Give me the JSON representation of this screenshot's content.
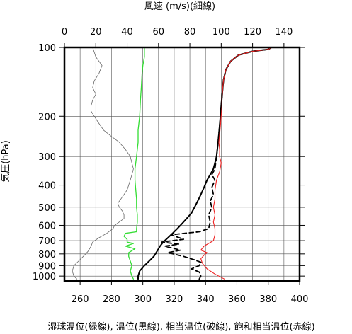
{
  "chart_data": {
    "type": "line",
    "x_top": {
      "label": "風速 (m/s)(細線)",
      "range": [
        0,
        150
      ],
      "ticks": [
        0,
        20,
        40,
        60,
        80,
        100,
        120,
        140
      ]
    },
    "x_bottom": {
      "range": [
        250,
        400
      ],
      "ticks": [
        260,
        280,
        300,
        320,
        340,
        360,
        380,
        400
      ]
    },
    "y": {
      "label": "気圧(hPa)",
      "scale": "log",
      "reversed": true,
      "range": [
        1050,
        100
      ],
      "ticks": [
        100,
        200,
        300,
        400,
        500,
        600,
        700,
        800,
        900,
        1000
      ]
    },
    "grid": true,
    "caption": "湿球温位(緑線), 温位(黒線), 相当温位(破線), 飽和相当温位(赤線)",
    "series": [
      {
        "key": "wind",
        "axis": "top",
        "color": "#666666",
        "dashed": false,
        "points": [
          [
            8,
            1030
          ],
          [
            6,
            1000
          ],
          [
            5,
            950
          ],
          [
            6,
            900
          ],
          [
            9,
            860
          ],
          [
            12,
            820
          ],
          [
            15,
            780
          ],
          [
            17,
            740
          ],
          [
            18,
            710
          ],
          [
            22,
            680
          ],
          [
            27,
            650
          ],
          [
            31,
            620
          ],
          [
            32,
            600
          ],
          [
            35,
            580
          ],
          [
            38,
            560
          ],
          [
            38,
            540
          ],
          [
            37,
            520
          ],
          [
            35,
            500
          ],
          [
            34,
            480
          ],
          [
            36,
            460
          ],
          [
            38,
            440
          ],
          [
            40,
            420
          ],
          [
            41,
            400
          ],
          [
            42,
            380
          ],
          [
            43,
            360
          ],
          [
            44,
            340
          ],
          [
            43,
            320
          ],
          [
            42,
            300
          ],
          [
            39,
            280
          ],
          [
            35,
            260
          ],
          [
            30,
            245
          ],
          [
            25,
            230
          ],
          [
            22,
            215
          ],
          [
            19,
            200
          ],
          [
            17,
            190
          ],
          [
            17,
            180
          ],
          [
            18,
            170
          ],
          [
            20,
            160
          ],
          [
            18,
            150
          ],
          [
            19,
            140
          ],
          [
            22,
            130
          ],
          [
            24,
            120
          ],
          [
            20,
            110
          ],
          [
            18,
            100
          ]
        ]
      },
      {
        "key": "wet_bulb_potential_temperature",
        "axis": "bottom",
        "color": "#33dd33",
        "dashed": false,
        "points": [
          [
            294,
            1030
          ],
          [
            293,
            1000
          ],
          [
            292,
            950
          ],
          [
            293,
            900
          ],
          [
            292,
            860
          ],
          [
            291,
            820
          ],
          [
            291,
            790
          ],
          [
            295,
            760
          ],
          [
            289,
            740
          ],
          [
            294,
            720
          ],
          [
            290,
            710
          ],
          [
            290,
            690
          ],
          [
            288,
            670
          ],
          [
            289,
            650
          ],
          [
            296,
            640
          ],
          [
            296,
            620
          ],
          [
            296.5,
            580
          ],
          [
            296.5,
            540
          ],
          [
            296,
            500
          ],
          [
            296,
            460
          ],
          [
            295.5,
            420
          ],
          [
            295,
            380
          ],
          [
            295,
            340
          ],
          [
            296,
            300
          ],
          [
            297,
            260
          ],
          [
            297,
            230
          ],
          [
            298,
            200
          ],
          [
            298.5,
            170
          ],
          [
            299,
            150
          ],
          [
            299.5,
            130
          ],
          [
            300,
            120
          ],
          [
            301,
            110
          ],
          [
            301,
            100
          ]
        ]
      },
      {
        "key": "potential_temperature",
        "axis": "bottom",
        "color": "#000000",
        "dashed": false,
        "points": [
          [
            297,
            1030
          ],
          [
            297,
            1000
          ],
          [
            298,
            950
          ],
          [
            301,
            900
          ],
          [
            304,
            860
          ],
          [
            307,
            820
          ],
          [
            309,
            780
          ],
          [
            311,
            740
          ],
          [
            313,
            710
          ],
          [
            316,
            680
          ],
          [
            319,
            650
          ],
          [
            322,
            620
          ],
          [
            325,
            590
          ],
          [
            328,
            560
          ],
          [
            331,
            530
          ],
          [
            333,
            500
          ],
          [
            335,
            470
          ],
          [
            337,
            440
          ],
          [
            339,
            410
          ],
          [
            341,
            380
          ],
          [
            343,
            360
          ],
          [
            345,
            340
          ],
          [
            346,
            320
          ],
          [
            347,
            300
          ],
          [
            347.5,
            280
          ],
          [
            348,
            260
          ],
          [
            348.5,
            240
          ],
          [
            349,
            220
          ],
          [
            349.5,
            200
          ],
          [
            350,
            180
          ],
          [
            350.5,
            165
          ],
          [
            351,
            150
          ],
          [
            351.5,
            138
          ],
          [
            353,
            125
          ],
          [
            356,
            115
          ],
          [
            361,
            108
          ],
          [
            370,
            104
          ],
          [
            380,
            102
          ],
          [
            382,
            100
          ]
        ]
      },
      {
        "key": "equivalent_potential_temperature",
        "axis": "bottom",
        "color": "#000000",
        "dashed": true,
        "points": [
          [
            336,
            1030
          ],
          [
            337,
            1000
          ],
          [
            336,
            960
          ],
          [
            331,
            930
          ],
          [
            336,
            900
          ],
          [
            337,
            870
          ],
          [
            333,
            850
          ],
          [
            326,
            820
          ],
          [
            316,
            790
          ],
          [
            324,
            770
          ],
          [
            314,
            740
          ],
          [
            323,
            725
          ],
          [
            312,
            710
          ],
          [
            326,
            690
          ],
          [
            318,
            660
          ],
          [
            336,
            640
          ],
          [
            342,
            620
          ],
          [
            343,
            580
          ],
          [
            342,
            540
          ],
          [
            344,
            500
          ],
          [
            343,
            470
          ],
          [
            345,
            440
          ],
          [
            344,
            410
          ],
          [
            346,
            380
          ],
          [
            344,
            360
          ],
          [
            346,
            340
          ],
          [
            347,
            300
          ],
          [
            347.5,
            280
          ],
          [
            348,
            260
          ],
          [
            348.5,
            240
          ],
          [
            349,
            220
          ],
          [
            349.5,
            200
          ],
          [
            350,
            180
          ],
          [
            350.5,
            165
          ],
          [
            351,
            150
          ],
          [
            351.5,
            138
          ],
          [
            353,
            125
          ],
          [
            356,
            115
          ],
          [
            361,
            108
          ],
          [
            370,
            104
          ],
          [
            380,
            102
          ],
          [
            382,
            100
          ]
        ]
      },
      {
        "key": "saturated_equivalent_potential_temperature",
        "axis": "bottom",
        "color": "#ee2222",
        "dashed": false,
        "points": [
          [
            352,
            1030
          ],
          [
            346,
            980
          ],
          [
            341,
            930
          ],
          [
            338,
            880
          ],
          [
            337,
            840
          ],
          [
            339,
            810
          ],
          [
            341,
            790
          ],
          [
            337,
            770
          ],
          [
            339,
            740
          ],
          [
            342,
            720
          ],
          [
            345,
            700
          ],
          [
            346,
            660
          ],
          [
            346,
            620
          ],
          [
            345,
            580
          ],
          [
            346,
            540
          ],
          [
            345,
            500
          ],
          [
            346,
            460
          ],
          [
            346,
            420
          ],
          [
            347,
            380
          ],
          [
            349,
            350
          ],
          [
            350,
            320
          ],
          [
            349,
            300
          ],
          [
            349,
            280
          ],
          [
            348.5,
            260
          ],
          [
            349,
            240
          ],
          [
            349.5,
            220
          ],
          [
            350,
            200
          ],
          [
            350.5,
            180
          ],
          [
            350.5,
            165
          ],
          [
            351,
            150
          ],
          [
            351.5,
            138
          ],
          [
            353,
            125
          ],
          [
            356,
            115
          ],
          [
            361,
            108
          ],
          [
            370,
            104
          ],
          [
            380,
            102
          ],
          [
            382,
            100
          ]
        ]
      }
    ]
  }
}
